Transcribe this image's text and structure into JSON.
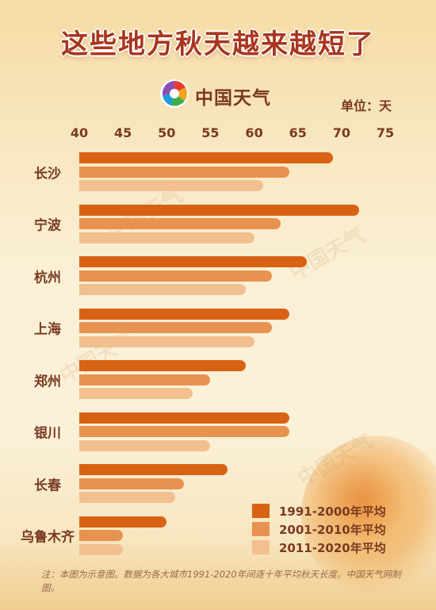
{
  "title": "这些地方秋天越来越短了",
  "brand": {
    "name": "中国天气"
  },
  "unit_label": "单位：天",
  "note": "注：本图为示意图。数据为各大城市1991-2020年间逐十年平均秋天长度。中国天气网制图。",
  "watermark": "中国天气",
  "colors": {
    "s1991": "#d86214",
    "s2001": "#e89250",
    "s2011": "#f1c08e",
    "title": "#a8361e",
    "text": "#7a3a22"
  },
  "chart_data": {
    "type": "bar",
    "orientation": "horizontal",
    "title": "这些地方秋天越来越短了",
    "unit": "天",
    "xlim": [
      40,
      75
    ],
    "x_ticks": [
      "40",
      "45",
      "50",
      "55",
      "60",
      "65",
      "70",
      "75"
    ],
    "categories": [
      "长沙",
      "宁波",
      "杭州",
      "上海",
      "郑州",
      "银川",
      "长春",
      "乌鲁木齐"
    ],
    "series": [
      {
        "name": "1991-2000年平均",
        "values": [
          69,
          72,
          66,
          64,
          59,
          64,
          57,
          50
        ]
      },
      {
        "name": "2001-2010年平均",
        "values": [
          64,
          63,
          62,
          62,
          55,
          64,
          52,
          45
        ]
      },
      {
        "name": "2011-2020年平均",
        "values": [
          61,
          60,
          59,
          60,
          53,
          55,
          51,
          45
        ]
      }
    ],
    "legend_position": "bottom-right"
  }
}
